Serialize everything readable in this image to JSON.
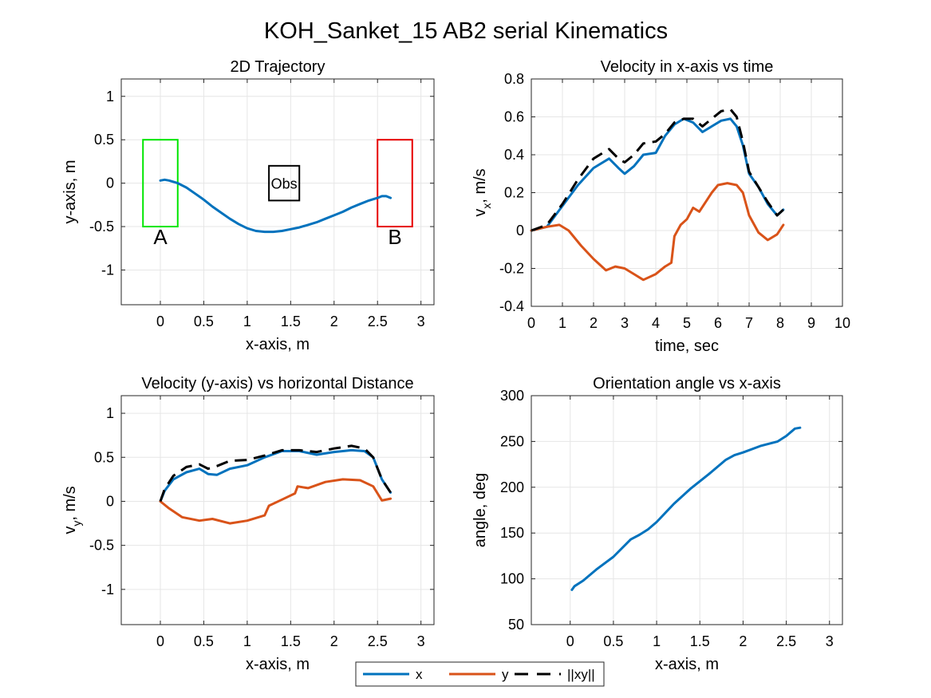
{
  "figure": {
    "suptitle": "KOH_Sanket_15    AB2    serial    Kinematics"
  },
  "colors": {
    "x": "#0072BD",
    "y": "#D95319",
    "xy": "#000000",
    "start_box": "#00E600",
    "goal_box": "#E60000",
    "grid": "#E6E6E6",
    "axes": "#262626"
  },
  "legend": {
    "placement": "bottom-center",
    "entries": [
      {
        "key": "x",
        "label": "x"
      },
      {
        "key": "y",
        "label": "y"
      },
      {
        "key": "xy",
        "label": "||xy||"
      }
    ]
  },
  "chart_data": [
    {
      "type": "line",
      "title": "2D Trajectory",
      "xlabel": "x-axis, m",
      "ylabel": "y-axis, m",
      "xlim": [
        -0.45,
        3.15
      ],
      "ylim": [
        -1.4,
        1.2
      ],
      "xticks": [
        0,
        0.5,
        1,
        1.5,
        2,
        2.5,
        3
      ],
      "xtick_labels": [
        "0",
        "0.5",
        "1",
        "1.5",
        "2",
        "2.5",
        "3"
      ],
      "yticks": [
        -1,
        -0.5,
        0,
        0.5,
        1
      ],
      "ytick_labels": [
        "-1",
        "-0.5",
        "0",
        "0.5",
        "1"
      ],
      "grid": true,
      "series": [
        {
          "key": "x",
          "x": [
            0.0,
            0.05,
            0.1,
            0.2,
            0.3,
            0.4,
            0.5,
            0.6,
            0.7,
            0.8,
            0.9,
            1.0,
            1.1,
            1.2,
            1.3,
            1.4,
            1.5,
            1.6,
            1.7,
            1.8,
            1.9,
            2.0,
            2.1,
            2.2,
            2.3,
            2.4,
            2.5,
            2.55,
            2.6,
            2.65
          ],
          "y": [
            0.03,
            0.04,
            0.03,
            0.0,
            -0.05,
            -0.12,
            -0.19,
            -0.27,
            -0.34,
            -0.41,
            -0.47,
            -0.52,
            -0.55,
            -0.56,
            -0.56,
            -0.55,
            -0.53,
            -0.51,
            -0.48,
            -0.45,
            -0.41,
            -0.37,
            -0.33,
            -0.28,
            -0.24,
            -0.2,
            -0.17,
            -0.15,
            -0.15,
            -0.17
          ]
        }
      ],
      "regions": [
        {
          "key": "start_box",
          "label": "A",
          "x0": -0.2,
          "x1": 0.2,
          "y0": -0.5,
          "y1": 0.5
        },
        {
          "key": "goal_box",
          "label": "B",
          "x0": 2.5,
          "x1": 2.9,
          "y0": -0.5,
          "y1": 0.5
        },
        {
          "key": "obstacle",
          "label": "Obs",
          "x0": 1.25,
          "x1": 1.6,
          "y0": -0.2,
          "y1": 0.2
        }
      ]
    },
    {
      "type": "line",
      "title": "Velocity in x-axis vs time",
      "xlabel": "time, sec",
      "ylabel": "v_x, m/s",
      "xlim": [
        0,
        10
      ],
      "ylim": [
        -0.4,
        0.8
      ],
      "xticks": [
        0,
        1,
        2,
        3,
        4,
        5,
        6,
        7,
        8,
        9,
        10
      ],
      "xtick_labels": [
        "0",
        "1",
        "2",
        "3",
        "4",
        "5",
        "6",
        "7",
        "8",
        "9",
        "10"
      ],
      "yticks": [
        -0.4,
        -0.2,
        0,
        0.2,
        0.4,
        0.6,
        0.8
      ],
      "ytick_labels": [
        "-0.4",
        "-0.2",
        "0",
        "0.2",
        "0.4",
        "0.6",
        "0.8"
      ],
      "grid": true,
      "series": [
        {
          "key": "x",
          "x": [
            0.0,
            0.5,
            1.0,
            1.5,
            2.0,
            2.5,
            2.8,
            3.0,
            3.3,
            3.6,
            4.0,
            4.3,
            4.6,
            4.9,
            5.2,
            5.5,
            5.8,
            6.1,
            6.4,
            6.6,
            6.8,
            7.0,
            7.3,
            7.6,
            7.9,
            8.1
          ],
          "y": [
            0.0,
            0.02,
            0.13,
            0.24,
            0.33,
            0.38,
            0.33,
            0.3,
            0.34,
            0.4,
            0.41,
            0.5,
            0.56,
            0.59,
            0.57,
            0.52,
            0.55,
            0.58,
            0.59,
            0.55,
            0.45,
            0.3,
            0.23,
            0.14,
            0.08,
            0.11
          ]
        },
        {
          "key": "y",
          "x": [
            0.0,
            0.5,
            0.9,
            1.2,
            1.6,
            2.0,
            2.4,
            2.7,
            3.0,
            3.3,
            3.6,
            4.0,
            4.3,
            4.5,
            4.6,
            4.8,
            5.0,
            5.2,
            5.4,
            5.6,
            5.8,
            6.0,
            6.3,
            6.6,
            6.8,
            7.0,
            7.3,
            7.6,
            7.9,
            8.1
          ],
          "y": [
            0.0,
            0.02,
            0.03,
            0.0,
            -0.08,
            -0.15,
            -0.21,
            -0.19,
            -0.2,
            -0.23,
            -0.26,
            -0.23,
            -0.19,
            -0.17,
            -0.03,
            0.03,
            0.06,
            0.12,
            0.1,
            0.15,
            0.2,
            0.24,
            0.25,
            0.24,
            0.2,
            0.08,
            -0.01,
            -0.05,
            -0.02,
            0.03
          ]
        },
        {
          "key": "xy",
          "x": [
            0.0,
            0.5,
            1.0,
            1.5,
            2.0,
            2.5,
            2.8,
            3.0,
            3.3,
            3.6,
            4.0,
            4.3,
            4.6,
            4.9,
            5.2,
            5.5,
            5.8,
            6.1,
            6.4,
            6.6,
            6.8,
            7.0,
            7.3,
            7.6,
            7.9,
            8.1
          ],
          "y": [
            0.0,
            0.03,
            0.14,
            0.27,
            0.38,
            0.43,
            0.38,
            0.36,
            0.4,
            0.46,
            0.47,
            0.51,
            0.57,
            0.59,
            0.59,
            0.55,
            0.59,
            0.63,
            0.64,
            0.6,
            0.47,
            0.31,
            0.23,
            0.15,
            0.08,
            0.11
          ]
        }
      ]
    },
    {
      "type": "line",
      "title": "Velocity (y-axis) vs horizontal Distance",
      "xlabel": "x-axis, m",
      "ylabel": "v_y, m/s",
      "xlim": [
        -0.45,
        3.15
      ],
      "ylim": [
        -1.4,
        1.2
      ],
      "xticks": [
        0,
        0.5,
        1,
        1.5,
        2,
        2.5,
        3
      ],
      "xtick_labels": [
        "0",
        "0.5",
        "1",
        "1.5",
        "2",
        "2.5",
        "3"
      ],
      "yticks": [
        -1,
        -0.5,
        0,
        0.5,
        1
      ],
      "ytick_labels": [
        "-1",
        "-0.5",
        "0",
        "0.5",
        "1"
      ],
      "grid": true,
      "series": [
        {
          "key": "x",
          "x": [
            0.0,
            0.05,
            0.15,
            0.3,
            0.45,
            0.55,
            0.65,
            0.8,
            1.0,
            1.2,
            1.4,
            1.6,
            1.8,
            2.0,
            2.2,
            2.35,
            2.45,
            2.55,
            2.65
          ],
          "y": [
            0.0,
            0.12,
            0.25,
            0.33,
            0.37,
            0.31,
            0.3,
            0.37,
            0.41,
            0.5,
            0.57,
            0.57,
            0.53,
            0.56,
            0.58,
            0.57,
            0.5,
            0.25,
            0.1
          ]
        },
        {
          "key": "y",
          "x": [
            0.0,
            0.1,
            0.25,
            0.45,
            0.6,
            0.8,
            1.0,
            1.2,
            1.25,
            1.4,
            1.55,
            1.58,
            1.7,
            1.9,
            2.1,
            2.3,
            2.45,
            2.55,
            2.65
          ],
          "y": [
            0.0,
            -0.08,
            -0.18,
            -0.22,
            -0.2,
            -0.25,
            -0.22,
            -0.16,
            -0.05,
            0.02,
            0.09,
            0.17,
            0.15,
            0.22,
            0.25,
            0.24,
            0.17,
            0.01,
            0.03
          ]
        },
        {
          "key": "xy",
          "x": [
            0.0,
            0.05,
            0.15,
            0.3,
            0.45,
            0.55,
            0.65,
            0.8,
            1.0,
            1.2,
            1.4,
            1.6,
            1.8,
            2.0,
            2.2,
            2.35,
            2.45,
            2.55,
            2.65
          ],
          "y": [
            0.0,
            0.14,
            0.29,
            0.39,
            0.42,
            0.37,
            0.4,
            0.46,
            0.47,
            0.52,
            0.58,
            0.58,
            0.56,
            0.6,
            0.63,
            0.6,
            0.5,
            0.25,
            0.1
          ]
        }
      ]
    },
    {
      "type": "line",
      "title": "Orientation angle vs x-axis",
      "xlabel": "x-axis, m",
      "ylabel": "angle, deg",
      "xlim": [
        -0.45,
        3.15
      ],
      "ylim": [
        50,
        300
      ],
      "xticks": [
        0,
        0.5,
        1,
        1.5,
        2,
        2.5,
        3
      ],
      "xtick_labels": [
        "0",
        "0.5",
        "1",
        "1.5",
        "2",
        "2.5",
        "3"
      ],
      "yticks": [
        50,
        100,
        150,
        200,
        250,
        300
      ],
      "ytick_labels": [
        "50",
        "100",
        "150",
        "200",
        "250",
        "300"
      ],
      "grid": true,
      "series": [
        {
          "key": "x",
          "x": [
            0.02,
            0.05,
            0.15,
            0.3,
            0.5,
            0.7,
            0.8,
            0.9,
            1.0,
            1.2,
            1.4,
            1.6,
            1.8,
            1.9,
            2.0,
            2.2,
            2.4,
            2.5,
            2.6,
            2.66
          ],
          "y": [
            88,
            92,
            98,
            110,
            124,
            143,
            148,
            154,
            162,
            182,
            199,
            214,
            230,
            235,
            238,
            245,
            250,
            256,
            264,
            265
          ]
        }
      ]
    }
  ]
}
